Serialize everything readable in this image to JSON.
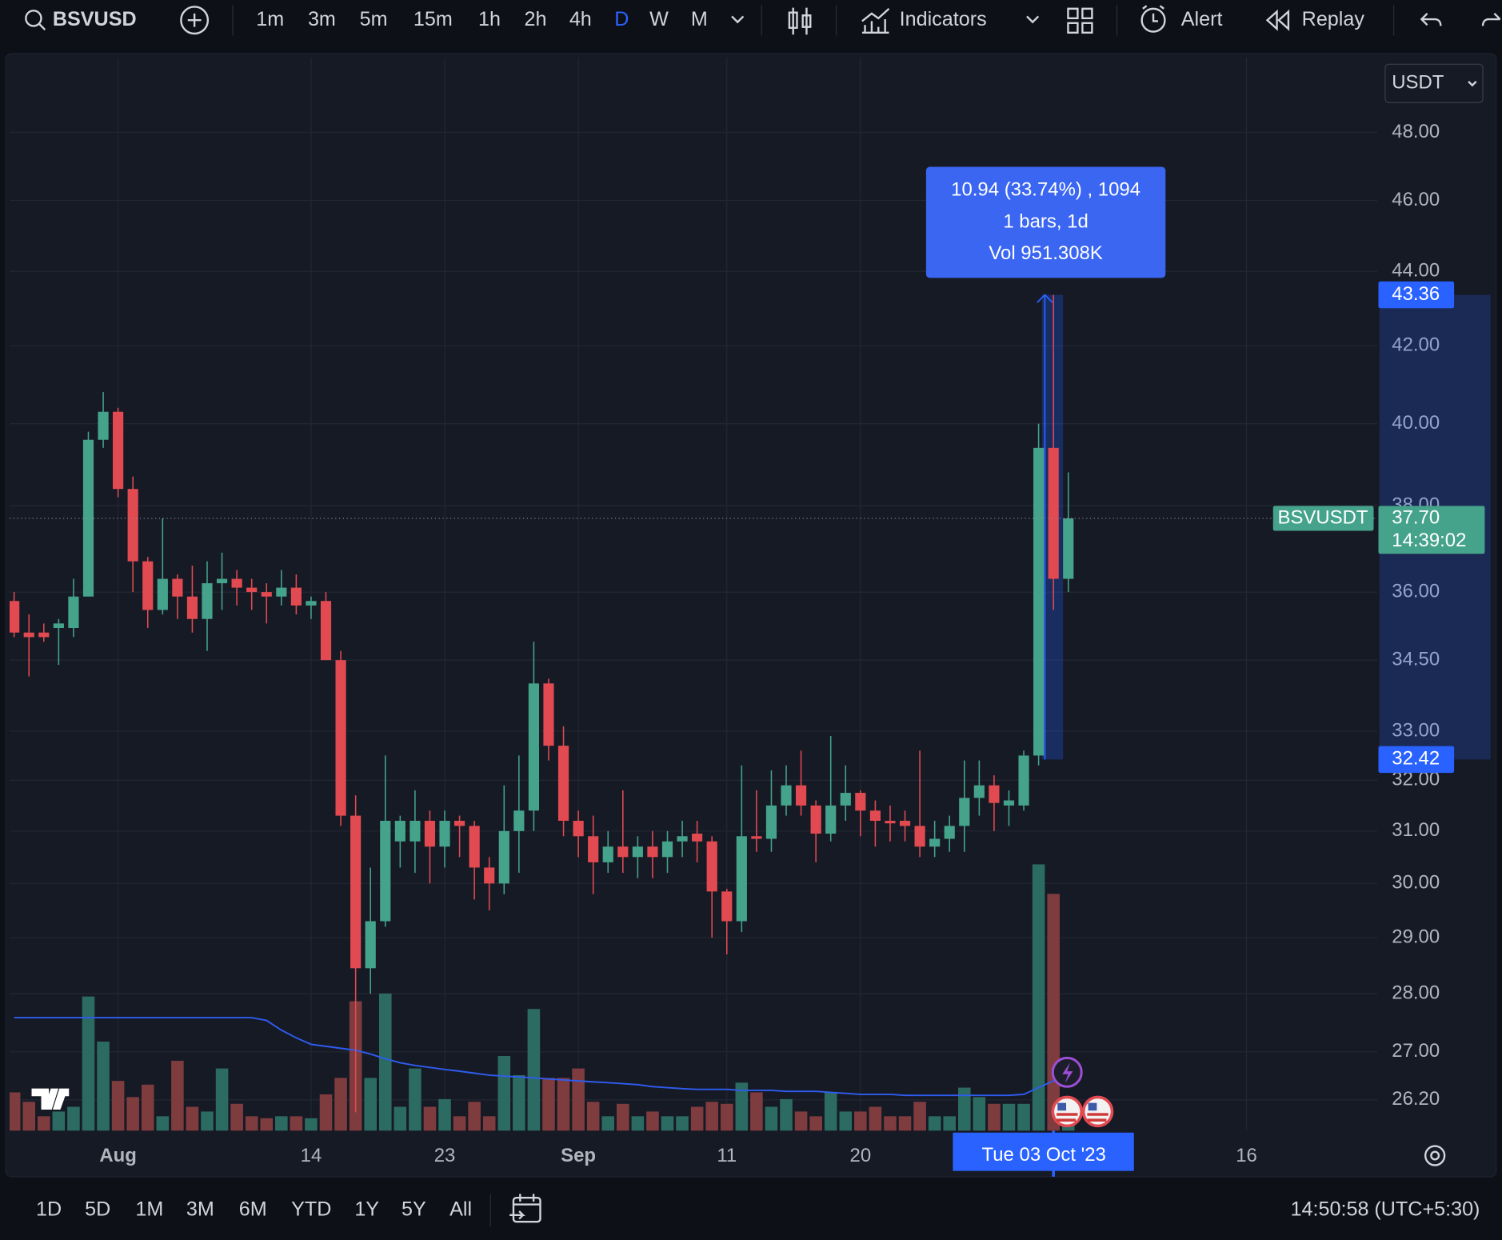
{
  "toolbar": {
    "symbol": "BSVUSD",
    "timeframes": [
      "1m",
      "3m",
      "5m",
      "15m",
      "1h",
      "2h",
      "4h",
      "D",
      "W",
      "M"
    ],
    "active_timeframe": "D",
    "indicators": "Indicators",
    "alert": "Alert",
    "replay": "Replay"
  },
  "bottom_bar": {
    "ranges": [
      "1D",
      "5D",
      "1M",
      "3M",
      "6M",
      "YTD",
      "1Y",
      "5Y",
      "All"
    ],
    "clock": "14:50:58 (UTC+5:30)"
  },
  "chart_data": {
    "type": "candlestick",
    "currency": "USDT",
    "log_scale": true,
    "grid": true,
    "up_color": "#45a38b",
    "down_color": "#e24a51",
    "volume_up_color": "#2c6b61",
    "volume_down_color": "#7f3c3f",
    "volume_ma_color": "#2f5cf0",
    "x": [
      "2023-07-25",
      "2023-07-26",
      "2023-07-27",
      "2023-07-28",
      "2023-07-29",
      "2023-07-30",
      "2023-07-31",
      "2023-08-01",
      "2023-08-02",
      "2023-08-03",
      "2023-08-04",
      "2023-08-05",
      "2023-08-06",
      "2023-08-07",
      "2023-08-08",
      "2023-08-09",
      "2023-08-10",
      "2023-08-11",
      "2023-08-12",
      "2023-08-13",
      "2023-08-14",
      "2023-08-15",
      "2023-08-16",
      "2023-08-17",
      "2023-08-18",
      "2023-08-19",
      "2023-08-20",
      "2023-08-21",
      "2023-08-22",
      "2023-08-23",
      "2023-08-24",
      "2023-08-25",
      "2023-08-26",
      "2023-08-27",
      "2023-08-28",
      "2023-08-29",
      "2023-08-30",
      "2023-08-31",
      "2023-09-01",
      "2023-09-02",
      "2023-09-03",
      "2023-09-04",
      "2023-09-05",
      "2023-09-06",
      "2023-09-07",
      "2023-09-08",
      "2023-09-09",
      "2023-09-10",
      "2023-09-11",
      "2023-09-12",
      "2023-09-13",
      "2023-09-14",
      "2023-09-15",
      "2023-09-16",
      "2023-09-17",
      "2023-09-18",
      "2023-09-19",
      "2023-09-20",
      "2023-09-21",
      "2023-09-22",
      "2023-09-23",
      "2023-09-24",
      "2023-09-25",
      "2023-09-26",
      "2023-09-27",
      "2023-09-28",
      "2023-09-29",
      "2023-09-30",
      "2023-10-01",
      "2023-10-02",
      "2023-10-03",
      "2023-10-04"
    ],
    "open": [
      35.8,
      35.1,
      35.1,
      35.2,
      35.2,
      35.9,
      39.6,
      40.3,
      38.4,
      36.7,
      35.6,
      36.3,
      35.9,
      35.4,
      36.2,
      36.3,
      36.1,
      36.0,
      35.9,
      36.1,
      35.7,
      35.8,
      34.5,
      31.3,
      28.45,
      29.3,
      30.8,
      30.8,
      31.2,
      30.7,
      31.2,
      31.1,
      30.3,
      30.0,
      31.0,
      31.4,
      34.0,
      32.7,
      31.2,
      30.9,
      30.4,
      30.7,
      30.5,
      30.7,
      30.5,
      30.8,
      30.95,
      30.8,
      29.85,
      29.3,
      30.9,
      30.85,
      31.5,
      31.9,
      31.5,
      30.95,
      31.5,
      31.75,
      31.4,
      31.2,
      31.2,
      31.1,
      30.7,
      30.85,
      31.1,
      31.65,
      31.9,
      31.5,
      31.5,
      32.5,
      39.4,
      36.3
    ],
    "high": [
      36.0,
      35.5,
      35.3,
      35.4,
      36.3,
      39.8,
      40.8,
      40.4,
      38.7,
      36.8,
      37.7,
      36.4,
      36.6,
      36.7,
      36.9,
      36.5,
      36.3,
      36.2,
      36.5,
      36.4,
      35.9,
      36.0,
      34.7,
      31.7,
      30.3,
      32.5,
      31.3,
      31.8,
      31.4,
      31.4,
      31.3,
      31.2,
      30.5,
      31.9,
      32.5,
      34.9,
      34.1,
      33.1,
      31.4,
      31.3,
      31.0,
      31.8,
      30.9,
      31.0,
      31.0,
      31.2,
      31.2,
      30.9,
      29.9,
      32.3,
      31.8,
      32.2,
      32.3,
      32.6,
      31.6,
      32.9,
      32.3,
      31.8,
      31.6,
      31.5,
      31.4,
      32.6,
      31.2,
      31.3,
      32.4,
      32.4,
      32.1,
      31.8,
      32.6,
      40.0,
      43.36,
      38.8
    ],
    "low": [
      35.0,
      34.15,
      34.9,
      34.4,
      35.0,
      35.9,
      39.4,
      38.2,
      36.0,
      35.2,
      35.5,
      35.4,
      35.1,
      34.7,
      35.6,
      35.7,
      35.6,
      35.3,
      35.7,
      35.5,
      35.4,
      34.5,
      31.1,
      26.0,
      28.0,
      29.2,
      30.3,
      30.2,
      30.0,
      30.3,
      30.5,
      29.7,
      29.5,
      29.8,
      30.2,
      31.0,
      32.4,
      30.9,
      30.5,
      29.8,
      30.2,
      30.2,
      30.1,
      30.1,
      30.2,
      30.5,
      30.4,
      29.0,
      28.7,
      29.1,
      30.6,
      30.6,
      31.3,
      31.3,
      30.4,
      30.8,
      31.2,
      30.9,
      30.7,
      30.8,
      30.8,
      30.5,
      30.5,
      30.6,
      30.6,
      31.3,
      31.0,
      31.1,
      31.4,
      32.3,
      35.6,
      36.0
    ],
    "close": [
      35.1,
      35.0,
      35.0,
      35.3,
      35.9,
      39.6,
      40.3,
      38.4,
      36.7,
      35.6,
      36.3,
      35.9,
      35.4,
      36.2,
      36.3,
      36.1,
      36.0,
      35.9,
      36.1,
      35.7,
      35.8,
      34.5,
      31.3,
      28.45,
      29.3,
      31.2,
      31.2,
      31.2,
      30.7,
      31.2,
      31.1,
      30.3,
      30.0,
      31.0,
      31.4,
      34.0,
      32.7,
      31.2,
      30.9,
      30.4,
      30.7,
      30.5,
      30.7,
      30.5,
      30.8,
      30.9,
      30.8,
      29.85,
      29.3,
      30.9,
      30.85,
      31.5,
      31.9,
      31.5,
      30.95,
      31.5,
      31.75,
      31.4,
      31.2,
      31.15,
      31.1,
      30.7,
      30.85,
      31.1,
      31.65,
      31.9,
      31.55,
      31.6,
      32.5,
      39.4,
      36.3,
      37.7
    ],
    "volume": [
      154,
      116,
      58,
      77,
      96,
      539,
      358,
      200,
      135,
      185,
      58,
      281,
      96,
      77,
      250,
      108,
      58,
      50,
      58,
      58,
      50,
      146,
      212,
      520,
      212,
      551,
      96,
      250,
      96,
      127,
      58,
      116,
      58,
      300,
      223,
      489,
      212,
      212,
      250,
      116,
      58,
      108,
      58,
      77,
      58,
      58,
      96,
      116,
      108,
      193,
      154,
      96,
      127,
      77,
      58,
      154,
      77,
      77,
      96,
      58,
      58,
      116,
      58,
      58,
      173,
      135,
      108,
      108,
      108,
      1070,
      951.308,
      116
    ],
    "volume_ma": [
      454,
      454,
      454,
      454,
      454,
      454,
      454,
      454,
      454,
      454,
      454,
      454,
      454,
      454,
      454,
      454,
      454,
      443,
      404,
      373,
      347,
      339,
      331,
      323,
      308,
      289,
      273,
      262,
      254,
      246,
      239,
      231,
      223,
      219,
      216,
      212,
      208,
      204,
      200,
      196,
      193,
      189,
      185,
      177,
      173,
      169,
      166,
      166,
      166,
      162,
      162,
      162,
      158,
      158,
      158,
      154,
      150,
      146,
      146,
      146,
      142,
      142,
      142,
      142,
      142,
      142,
      142,
      142,
      146,
      173,
      200,
      200
    ],
    "xlim": [
      "2023-07-25",
      "2023-10-26"
    ],
    "xticks": [
      {
        "value": "2023-08-01",
        "label": "Aug"
      },
      {
        "value": "2023-08-14",
        "label": "14"
      },
      {
        "value": "2023-08-23",
        "label": "23"
      },
      {
        "value": "2023-09-01",
        "label": "Sep"
      },
      {
        "value": "2023-09-11",
        "label": "11"
      },
      {
        "value": "2023-09-20",
        "label": "20"
      },
      {
        "value": "2023-10-16",
        "label": "16"
      }
    ],
    "ylim": [
      25.7,
      50.3
    ],
    "yticks": [
      {
        "value": 48,
        "label": "48.00"
      },
      {
        "value": 46,
        "label": "46.00"
      },
      {
        "value": 44,
        "label": "44.00"
      },
      {
        "value": 42,
        "label": "42.00"
      },
      {
        "value": 40,
        "label": "40.00"
      },
      {
        "value": 38,
        "label": "38.00"
      },
      {
        "value": 36,
        "label": "36.00"
      },
      {
        "value": 34.5,
        "label": "34.50"
      },
      {
        "value": 33,
        "label": "33.00"
      },
      {
        "value": 32,
        "label": "32.00"
      },
      {
        "value": 31,
        "label": "31.00"
      },
      {
        "value": 30,
        "label": "30.00"
      },
      {
        "value": 29,
        "label": "29.00"
      },
      {
        "value": 28,
        "label": "28.00"
      },
      {
        "value": 27,
        "label": "27.00"
      },
      {
        "value": 26.2,
        "label": "26.20"
      }
    ],
    "last_price": {
      "symbol": "BSVUSDT",
      "value": 37.7,
      "label": "37.70",
      "countdown": "14:39:02"
    },
    "measure": {
      "from": 32.42,
      "to": 43.36,
      "lines": [
        "10.94 (33.74%) , 1094",
        "1 bars, 1d",
        "Vol 951.308K"
      ]
    },
    "crosshair": {
      "x": "2023-10-03",
      "label": "Tue 03 Oct '23"
    }
  }
}
